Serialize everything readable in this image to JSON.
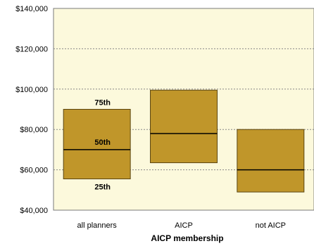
{
  "chart_data": {
    "type": "box",
    "title": "",
    "xlabel": "AICP membership",
    "ylabel": "",
    "categories": [
      "all planners",
      "AICP",
      "not AICP"
    ],
    "ylim": [
      40000,
      140000
    ],
    "y_ticks": [
      40000,
      60000,
      80000,
      100000,
      120000,
      140000
    ],
    "y_tick_labels": [
      "$40,000",
      "$60,000",
      "$80,000",
      "$100,000",
      "$120,000",
      "$140,000"
    ],
    "series": [
      {
        "category": "all planners",
        "p25": 55500,
        "p50": 70000,
        "p75": 90000
      },
      {
        "category": "AICP",
        "p25": 63500,
        "p50": 78000,
        "p75": 99500
      },
      {
        "category": "not AICP",
        "p25": 49000,
        "p50": 60000,
        "p75": 80000
      }
    ],
    "percentile_labels": {
      "p75": "75th",
      "p50": "50th",
      "p25": "25th"
    },
    "grid": true,
    "colors": {
      "plot_background": "#fcf9dc",
      "box_fill": "#c0962a",
      "box_stroke": "#5a4512",
      "median": "#000000",
      "grid": "#888888"
    }
  }
}
